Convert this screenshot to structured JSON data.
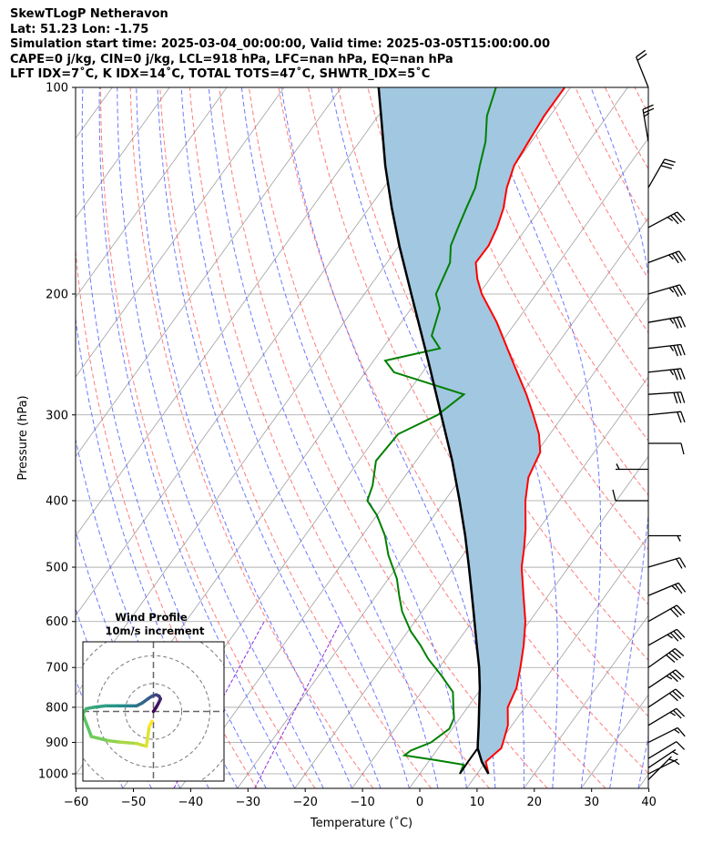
{
  "header": {
    "title": "SkewTLogP Netheravon",
    "location": "Lat: 51.23   Lon: -1.75",
    "times": "Simulation start time: 2025-03-04_00:00:00, Valid time: 2025-03-05T15:00:00.00",
    "indices1": "CAPE=0 j/kg, CIN=0 j/kg, LCL=918 hPa, LFC=nan hPa, EQ=nan hPa",
    "indices2": "LFT IDX=7˚C, K IDX=14˚C, TOTAL TOTS=47˚C, SHWTR_IDX=5˚C"
  },
  "chart_data": {
    "type": "line",
    "xlabel": "Temperature (˚C)",
    "ylabel": "Pressure (hPa)",
    "xlim": [
      -60,
      40
    ],
    "ylim": [
      1050,
      100
    ],
    "y_scale": "log",
    "skew": true,
    "grid": true,
    "x_ticks": [
      -60,
      -50,
      -40,
      -30,
      -20,
      -10,
      0,
      10,
      20,
      30,
      40
    ],
    "x_tick_labels": [
      "−60",
      "−50",
      "−40",
      "−30",
      "−20",
      "−10",
      "0",
      "10",
      "20",
      "30",
      "40"
    ],
    "y_ticks": [
      1000,
      900,
      800,
      700,
      600,
      500,
      400,
      300,
      200,
      100
    ],
    "colors": {
      "temperature": "#ff0000",
      "dewpoint": "#008000",
      "parcel": "#000000",
      "cape_cin_fill": "#a2c7e0",
      "dry_adiabats": "#ff5050",
      "moist_adiabats": "#4a55ff",
      "mixing_ratio": "#8a2be2",
      "isotherms": "#a0a0a0"
    },
    "series": [
      {
        "key": "temperature",
        "pressure": [
          1000,
          960,
          930,
          918,
          900,
          850,
          800,
          750,
          700,
          650,
          600,
          550,
          500,
          470,
          440,
          400,
          370,
          340,
          320,
          300,
          280,
          260,
          240,
          220,
          200,
          190,
          180,
          170,
          160,
          150,
          140,
          130,
          120,
          110,
          100
        ],
        "values": [
          12.0,
          10.0,
          10.7,
          11.0,
          10.6,
          9.3,
          7.0,
          6.1,
          4.2,
          2.0,
          -0.7,
          -4.3,
          -8.2,
          -10.1,
          -12.3,
          -15.9,
          -18.3,
          -19.4,
          -21.9,
          -25.3,
          -29.1,
          -33.5,
          -38.2,
          -43.3,
          -49.5,
          -52.2,
          -54.5,
          -54.4,
          -55.2,
          -56.5,
          -58.5,
          -60.0,
          -60.5,
          -61.0,
          -61.0
        ]
      },
      {
        "key": "dewpoint",
        "pressure": [
          1000,
          970,
          955,
          940,
          925,
          900,
          860,
          830,
          800,
          760,
          720,
          680,
          650,
          620,
          580,
          550,
          520,
          480,
          450,
          420,
          400,
          380,
          350,
          320,
          300,
          280,
          260,
          250,
          240,
          230,
          210,
          200,
          180,
          170,
          160,
          150,
          140,
          130,
          120,
          110,
          100
        ],
        "values": [
          7.0,
          6.5,
          1.0,
          -5.0,
          -4.5,
          -2.0,
          -0.5,
          -1.0,
          -2.5,
          -4.5,
          -8.5,
          -13.0,
          -16.0,
          -19.5,
          -23.5,
          -26.0,
          -28.5,
          -33.0,
          -36.0,
          -40.0,
          -43.5,
          -44.5,
          -47.0,
          -46.5,
          -42.0,
          -40.0,
          -55.0,
          -58.0,
          -50.0,
          -53.0,
          -55.0,
          -57.5,
          -59.0,
          -61.0,
          -62.0,
          -63.0,
          -64.0,
          -66.0,
          -68.0,
          -71.0,
          -73.0
        ]
      },
      {
        "key": "parcel",
        "pressure": [
          1000,
          960,
          918,
          900,
          850,
          800,
          750,
          700,
          650,
          600,
          550,
          500,
          450,
          400,
          350,
          300,
          250,
          200,
          170,
          150,
          130,
          110,
          100
        ],
        "values": [
          12.0,
          9.3,
          6.9,
          6.2,
          4.2,
          2.0,
          -0.3,
          -3.0,
          -6.2,
          -9.6,
          -13.3,
          -17.4,
          -22.0,
          -27.4,
          -33.7,
          -41.4,
          -50.5,
          -61.8,
          -70.0,
          -76.0,
          -82.5,
          -89.5,
          -93.5
        ]
      }
    ],
    "lower_parcel": {
      "pressure": [
        1000,
        960,
        918
      ],
      "values": [
        7.0,
        6.9,
        6.9
      ]
    },
    "wind_barbs": {
      "pressure": [
        100,
        120,
        140,
        160,
        180,
        200,
        220,
        240,
        260,
        280,
        300,
        330,
        360,
        400,
        450,
        500,
        550,
        600,
        650,
        700,
        750,
        800,
        850,
        900,
        950,
        980,
        1000,
        1020
      ],
      "u": [
        -4,
        -2,
        8,
        15,
        16,
        17,
        17,
        17,
        18,
        15,
        10,
        5,
        -2,
        -5,
        2,
        10,
        12,
        14,
        16,
        17,
        15,
        12,
        10,
        8,
        5,
        3,
        2,
        1
      ],
      "v": [
        10,
        12,
        14,
        8,
        6,
        5,
        3,
        2,
        2,
        1,
        1,
        0,
        0,
        0,
        0,
        3,
        5,
        8,
        9,
        12,
        10,
        8,
        6,
        4,
        3,
        2,
        1,
        1
      ]
    },
    "hodograph": {
      "title": "Wind Profile",
      "subtitle": "10m/s increment",
      "rings_mps": [
        10,
        20,
        30
      ],
      "range_mps": [
        -25,
        25
      ],
      "u": [
        0,
        1,
        1.8,
        2.5,
        2.0,
        1.0,
        -0.5,
        -2.0,
        -4.0,
        -6.0,
        -8.0,
        -10.0,
        -13.0,
        -17.0,
        -21.0,
        -23.8,
        -24.5,
        -25.0,
        -22.0,
        -16.0,
        -12.0,
        -6.0,
        -2.5,
        -1.5,
        -0.5
      ],
      "v": [
        0,
        1.5,
        3.0,
        4.5,
        5.5,
        6.0,
        5.5,
        4.5,
        3.0,
        2.0,
        2.0,
        2.0,
        2.0,
        2.0,
        1.5,
        1.0,
        0.0,
        -1.0,
        -9.0,
        -10.5,
        -11.0,
        -11.5,
        -12.5,
        -5.5,
        -3.5
      ]
    }
  }
}
